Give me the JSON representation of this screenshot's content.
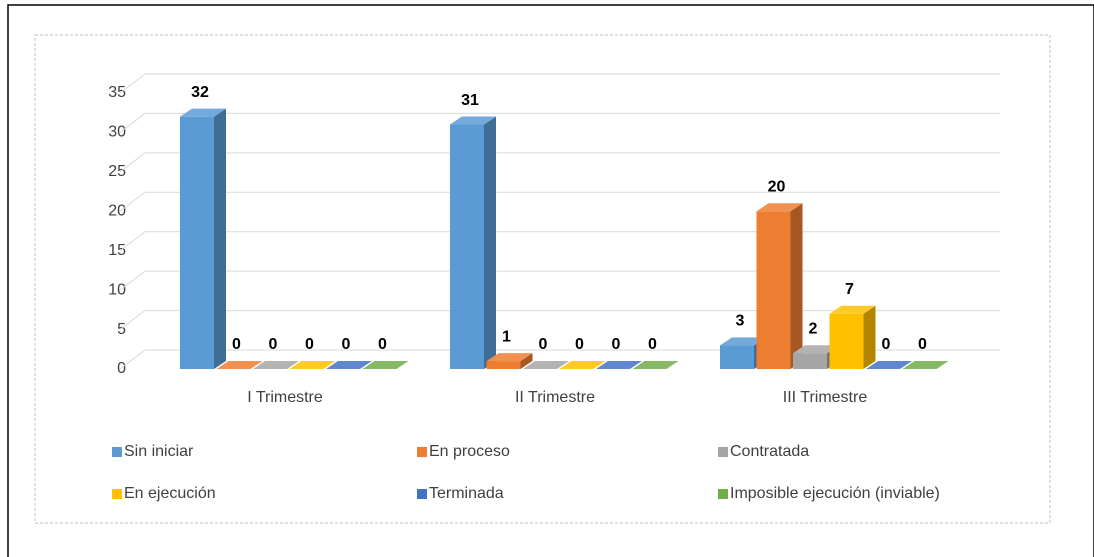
{
  "chart_data": {
    "type": "bar3d",
    "categories": [
      "I Trimestre",
      "II Trimestre",
      "III Trimestre"
    ],
    "series": [
      {
        "name": "Sin iniciar",
        "color": "#5b9bd5",
        "values": [
          32,
          31,
          3
        ]
      },
      {
        "name": "En proceso",
        "color": "#ed7d31",
        "values": [
          0,
          1,
          20
        ]
      },
      {
        "name": "Contratada",
        "color": "#a5a5a5",
        "values": [
          0,
          0,
          2
        ]
      },
      {
        "name": "En ejecución",
        "color": "#ffc000",
        "values": [
          0,
          0,
          7
        ]
      },
      {
        "name": "Terminada",
        "color": "#4472c4",
        "values": [
          0,
          0,
          0
        ]
      },
      {
        "name": "Imposible ejecución (inviable)",
        "color": "#70ad47",
        "values": [
          0,
          0,
          0
        ]
      }
    ],
    "ylim": [
      0,
      35
    ],
    "yticks": [
      0,
      5,
      10,
      15,
      20,
      25,
      30,
      35
    ],
    "grid": true,
    "legend": "bottom"
  }
}
